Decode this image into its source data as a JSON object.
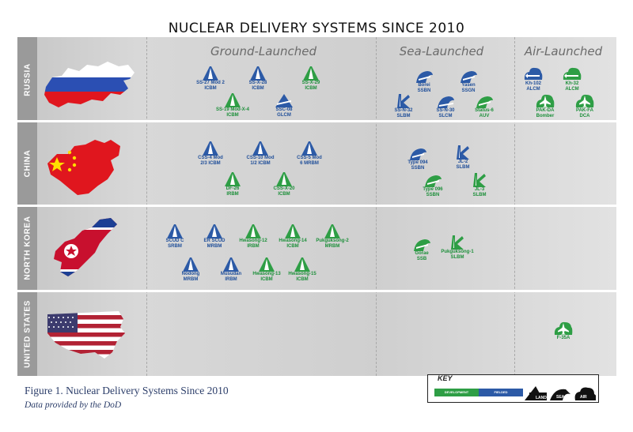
{
  "title": "NUCLEAR DELIVERY SYSTEMS SINCE 2010",
  "columns": [
    "Ground-Launched",
    "Sea-Launched",
    "Air-Launched"
  ],
  "rows": [
    "RUSSIA",
    "CHINA",
    "NORTH KOREA",
    "UNITED STATES"
  ],
  "colors": {
    "development": "#2e9e45",
    "fielded": "#2c5aa6",
    "air_icon_blue": "#2c5aa6"
  },
  "symbols": {
    "ru_ss27": {
      "line1": "SS-27 Mod 2",
      "line2": "ICBM",
      "status": "fielded",
      "icon": "land"
    },
    "ru_ssx28": {
      "line1": "SS-X-28",
      "line2": "ICBM",
      "status": "fielded",
      "icon": "land"
    },
    "ru_ssx29": {
      "line1": "SS-X-29",
      "line2": "ICBM",
      "status": "development",
      "icon": "land"
    },
    "ru_ss19": {
      "line1": "SS-19 Mod-X-4",
      "line2": "ICBM",
      "status": "development",
      "icon": "land"
    },
    "ru_ssc08": {
      "line1": "SSC-08",
      "line2": "GLCM",
      "status": "fielded",
      "icon": "land-cruise"
    },
    "ru_borei": {
      "line1": "Borei",
      "line2": "SSBN",
      "status": "fielded",
      "icon": "sub"
    },
    "ru_yasen": {
      "line1": "Yasen",
      "line2": "SSGN",
      "status": "fielded",
      "icon": "sub"
    },
    "ru_ssn32": {
      "line1": "SS-N-32",
      "line2": "SLBM",
      "status": "fielded",
      "icon": "sea-missile"
    },
    "ru_ssn30": {
      "line1": "SS-N-30",
      "line2": "SLCM",
      "status": "fielded",
      "icon": "sub-cruise"
    },
    "ru_status6": {
      "line1": "Status-6",
      "line2": "AUV",
      "status": "development",
      "icon": "sub"
    },
    "ru_kh102": {
      "line1": "Kh-102",
      "line2": "ALCM",
      "status": "fielded",
      "icon": "air-missile"
    },
    "ru_kh32": {
      "line1": "Kh-32",
      "line2": "ALCM",
      "status": "development",
      "icon": "air-missile"
    },
    "ru_pakda": {
      "line1": "PAK-DA",
      "line2": "Bomber",
      "status": "development",
      "icon": "air-plane"
    },
    "ru_pakfa": {
      "line1": "PAK-FA",
      "line2": "DCA",
      "status": "development",
      "icon": "air-plane"
    },
    "cn_css4": {
      "line1": "CSS-4 Mod",
      "line2": "2/3 ICBM",
      "status": "fielded",
      "icon": "land"
    },
    "cn_css10": {
      "line1": "CSS-10 Mod",
      "line2": "1/2 ICBM",
      "status": "fielded",
      "icon": "land"
    },
    "cn_css5": {
      "line1": "CSS-5 Mod",
      "line2": "6 MRBM",
      "status": "fielded",
      "icon": "land"
    },
    "cn_df26": {
      "line1": "DF-26",
      "line2": "IRBM",
      "status": "development",
      "icon": "land"
    },
    "cn_cssx20": {
      "line1": "CSS-X-20",
      "line2": "ICBM",
      "status": "development",
      "icon": "land"
    },
    "cn_type094": {
      "line1": "Type 094",
      "line2": "SSBN",
      "status": "fielded",
      "icon": "sub"
    },
    "cn_jl2": {
      "line1": "JL-2",
      "line2": "SLBM",
      "status": "fielded",
      "icon": "sea-missile"
    },
    "cn_type096": {
      "line1": "Type 096",
      "line2": "SSBN",
      "status": "development",
      "icon": "sub"
    },
    "cn_jl3": {
      "line1": "JL-3",
      "line2": "SLBM",
      "status": "development",
      "icon": "sea-missile"
    },
    "nk_scudc": {
      "line1": "SCUD C",
      "line2": "SRBM",
      "status": "fielded",
      "icon": "land"
    },
    "nk_erscud": {
      "line1": "ER SCUD",
      "line2": "MRBM",
      "status": "fielded",
      "icon": "land"
    },
    "nk_hw12": {
      "line1": "Hwasong-12",
      "line2": "IRBM",
      "status": "development",
      "icon": "land"
    },
    "nk_hw14": {
      "line1": "Hwasong-14",
      "line2": "ICBM",
      "status": "development",
      "icon": "land"
    },
    "nk_pk2": {
      "line1": "Pukguksong-2",
      "line2": "MRBM",
      "status": "development",
      "icon": "land"
    },
    "nk_nodong": {
      "line1": "Nodong",
      "line2": "MRBM",
      "status": "fielded",
      "icon": "land"
    },
    "nk_musudan": {
      "line1": "Musudan",
      "line2": "IRBM",
      "status": "fielded",
      "icon": "land"
    },
    "nk_hw13": {
      "line1": "Hwasong-13",
      "line2": "ICBM",
      "status": "development",
      "icon": "land"
    },
    "nk_hw15": {
      "line1": "Hwasong-15",
      "line2": "ICBM",
      "status": "development",
      "icon": "land"
    },
    "nk_gorae": {
      "line1": "Gorae",
      "line2": "SSB",
      "status": "development",
      "icon": "sub"
    },
    "nk_pk1": {
      "line1": "Pukguksong-1",
      "line2": "SLBM",
      "status": "development",
      "icon": "sea-missile"
    },
    "us_f35a": {
      "line1": "F-35A",
      "line2": "",
      "status": "development",
      "icon": "air-plane"
    }
  },
  "key": {
    "title": "KEY",
    "development": "DEVELOPMENT",
    "fielded": "FIELDED",
    "land": "LAND",
    "sea": "SEA",
    "air": "AIR"
  },
  "caption": "Figure 1. Nuclear Delivery Systems Since 2010",
  "caption_source": "Data provided by the DoD"
}
